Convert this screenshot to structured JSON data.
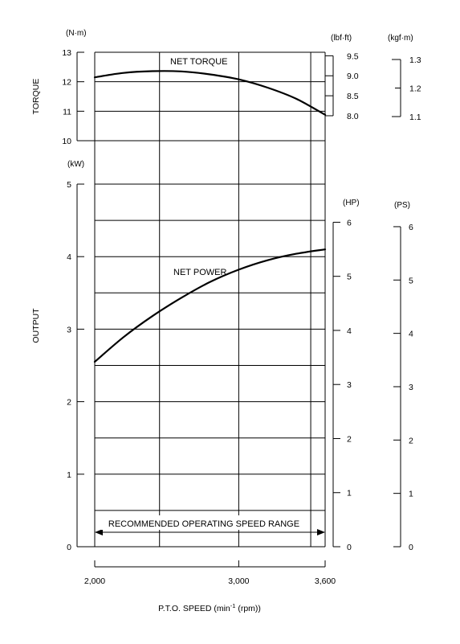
{
  "chart_data": {
    "type": "line",
    "x": {
      "label": "P.T.O. SPEED (min",
      "label_sup": "-1",
      "label_tail": " (rpm))",
      "ticks": [
        "2,000",
        "3,000",
        "3,600"
      ],
      "tick_values": [
        2000,
        3000,
        3600
      ],
      "gridlines": [
        2000,
        2450,
        3000,
        3500,
        3600
      ],
      "range": [
        2000,
        3600
      ]
    },
    "torque_axis": {
      "title": "TORQUE",
      "unit": "(N·m)",
      "range": [
        10,
        13
      ],
      "ticks": [
        "10",
        "11",
        "12",
        "13"
      ],
      "tick_values": [
        10,
        11,
        12,
        13
      ]
    },
    "torque_lbf_axis": {
      "unit": "(lbf·ft)",
      "ticks": [
        "8.0",
        "8.5",
        "9.0",
        "9.5"
      ],
      "tick_values": [
        8.0,
        8.5,
        9.0,
        9.5
      ]
    },
    "torque_kgf_axis": {
      "unit": "(kgf·m)",
      "ticks": [
        "1.1",
        "1.2",
        "1.3"
      ],
      "tick_values": [
        1.1,
        1.2,
        1.3
      ]
    },
    "output_axis": {
      "title": "OUTPUT",
      "unit": "(kW)",
      "range": [
        0,
        5
      ],
      "ticks": [
        "0",
        "1",
        "2",
        "3",
        "4",
        "5"
      ],
      "tick_values": [
        0,
        1,
        2,
        3,
        4,
        5
      ]
    },
    "output_hp_axis": {
      "unit": "(HP)",
      "ticks": [
        "0",
        "1",
        "2",
        "3",
        "4",
        "5",
        "6"
      ],
      "tick_values": [
        0,
        1,
        2,
        3,
        4,
        5,
        6
      ]
    },
    "output_ps_axis": {
      "unit": "(PS)",
      "ticks": [
        "0",
        "1",
        "2",
        "3",
        "4",
        "5",
        "6"
      ],
      "tick_values": [
        0,
        1,
        2,
        3,
        4,
        5,
        6
      ]
    },
    "series": [
      {
        "name": "NET TORQUE",
        "axis": "torque",
        "x": [
          2000,
          2200,
          2400,
          2600,
          2800,
          3000,
          3200,
          3400,
          3600
        ],
        "y": [
          12.15,
          12.3,
          12.36,
          12.35,
          12.25,
          12.08,
          11.8,
          11.42,
          10.88
        ]
      },
      {
        "name": "NET POWER",
        "axis": "output",
        "x": [
          2000,
          2200,
          2400,
          2600,
          2800,
          3000,
          3200,
          3400,
          3600
        ],
        "y": [
          2.55,
          2.89,
          3.18,
          3.43,
          3.65,
          3.82,
          3.95,
          4.04,
          4.1
        ]
      }
    ],
    "annotation": "RECOMMENDED OPERATING SPEED RANGE",
    "annotation_range": [
      2000,
      3600
    ]
  }
}
